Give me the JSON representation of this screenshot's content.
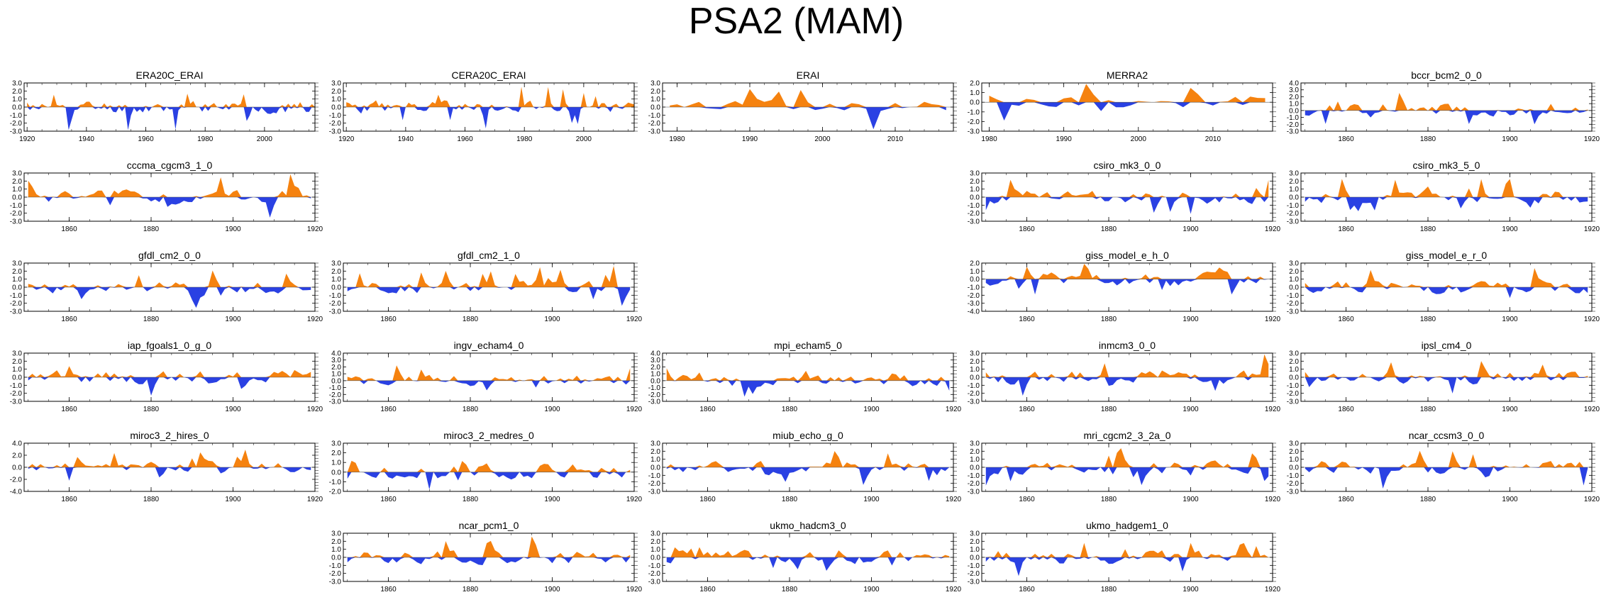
{
  "title": "PSA2 (MAM)",
  "colors": {
    "positive": "#f5820f",
    "negative": "#2a41e3",
    "axis": "#000000"
  },
  "chart_data": [
    {
      "name": "ERA20C_ERAI",
      "type": "area",
      "title": "ERA20C_ERAI",
      "x_start": 1920,
      "x_end": 2017,
      "xlim": [
        1919,
        2017
      ],
      "xticks": [
        1920,
        1940,
        1960,
        1980,
        2000
      ],
      "ylim": [
        -3.0,
        3.0
      ],
      "yticks": [
        "3.0",
        "2.0",
        "1.0",
        "0.0",
        "-1.0",
        "-2.0",
        "-3.0"
      ],
      "seed": 11
    },
    {
      "name": "CERA20C_ERAI",
      "type": "area",
      "title": "CERA20C_ERAI",
      "x_start": 1920,
      "x_end": 2017,
      "xlim": [
        1919,
        2017
      ],
      "xticks": [
        1920,
        1940,
        1960,
        1980,
        2000
      ],
      "ylim": [
        -3.0,
        3.0
      ],
      "yticks": [
        "3.0",
        "2.0",
        "1.0",
        "0.0",
        "-1.0",
        "-2.0",
        "-3.0"
      ],
      "seed": 23
    },
    {
      "name": "ERAI",
      "type": "area",
      "title": "ERAI",
      "x_start": 1979,
      "x_end": 2017,
      "xlim": [
        1978,
        2018
      ],
      "xticks": [
        1980,
        1990,
        2000,
        2010
      ],
      "ylim": [
        -3.0,
        3.0
      ],
      "yticks": [
        "3.0",
        "2.0",
        "1.0",
        "0.0",
        "-1.0",
        "-2.0",
        "-3.0"
      ],
      "seed": 37
    },
    {
      "name": "MERRA2",
      "type": "area",
      "title": "MERRA2",
      "x_start": 1980,
      "x_end": 2017,
      "xlim": [
        1979,
        2018
      ],
      "xticks": [
        1980,
        1990,
        2000,
        2010
      ],
      "ylim": [
        -3.0,
        2.0
      ],
      "yticks": [
        "2.0",
        "1.0",
        "0.0",
        "-1.0",
        "-2.0",
        "-3.0"
      ],
      "seed": 41
    },
    {
      "name": "bccr_bcm2_0_0",
      "type": "area",
      "title": "bccr_bcm2_0_0",
      "x_start": 1850,
      "x_end": 1919,
      "xlim": [
        1849,
        1920
      ],
      "xticks": [
        1860,
        1880,
        1900,
        1920
      ],
      "ylim": [
        -3.0,
        4.0
      ],
      "yticks": [
        "4.0",
        "3.0",
        "2.0",
        "1.0",
        "0.0",
        "-1.0",
        "-2.0",
        "-3.0"
      ],
      "seed": 53
    },
    {
      "name": "cccma_cgcm3_1_0",
      "type": "area",
      "title": "cccma_cgcm3_1_0",
      "x_start": 1850,
      "x_end": 1919,
      "xlim": [
        1849,
        1920
      ],
      "xticks": [
        1860,
        1880,
        1900,
        1920
      ],
      "ylim": [
        -3.0,
        3.0
      ],
      "yticks": [
        "3.0",
        "2.0",
        "1.0",
        "0.0",
        "-1.0",
        "-2.0",
        "-3.0"
      ],
      "seed": 61
    },
    {
      "name": "csiro_mk3_0_0",
      "type": "area",
      "title": "csiro_mk3_0_0",
      "x_start": 1850,
      "x_end": 1919,
      "xlim": [
        1849,
        1920
      ],
      "xticks": [
        1860,
        1880,
        1900,
        1920
      ],
      "ylim": [
        -3.0,
        3.0
      ],
      "yticks": [
        "3.0",
        "2.0",
        "1.0",
        "0.0",
        "-1.0",
        "-2.0",
        "-3.0"
      ],
      "seed": 71
    },
    {
      "name": "csiro_mk3_5_0",
      "type": "area",
      "title": "csiro_mk3_5_0",
      "x_start": 1850,
      "x_end": 1919,
      "xlim": [
        1849,
        1920
      ],
      "xticks": [
        1860,
        1880,
        1900,
        1920
      ],
      "ylim": [
        -3.0,
        3.0
      ],
      "yticks": [
        "3.0",
        "2.0",
        "1.0",
        "0.0",
        "-1.0",
        "-2.0",
        "-3.0"
      ],
      "seed": 83
    },
    {
      "name": "gfdl_cm2_0_0",
      "type": "area",
      "title": "gfdl_cm2_0_0",
      "x_start": 1850,
      "x_end": 1919,
      "xlim": [
        1849,
        1920
      ],
      "xticks": [
        1860,
        1880,
        1900,
        1920
      ],
      "ylim": [
        -3.0,
        3.0
      ],
      "yticks": [
        "3.0",
        "2.0",
        "1.0",
        "0.0",
        "-1.0",
        "-2.0",
        "-3.0"
      ],
      "seed": 97
    },
    {
      "name": "gfdl_cm2_1_0",
      "type": "area",
      "title": "gfdl_cm2_1_0",
      "x_start": 1850,
      "x_end": 1919,
      "xlim": [
        1849,
        1920
      ],
      "xticks": [
        1860,
        1880,
        1900,
        1920
      ],
      "ylim": [
        -3.0,
        3.0
      ],
      "yticks": [
        "3.0",
        "2.0",
        "1.0",
        "0.0",
        "-1.0",
        "-2.0",
        "-3.0"
      ],
      "seed": 101
    },
    {
      "name": "giss_model_e_h_0",
      "type": "area",
      "title": "giss_model_e_h_0",
      "x_start": 1850,
      "x_end": 1919,
      "xlim": [
        1849,
        1920
      ],
      "xticks": [
        1860,
        1880,
        1900,
        1920
      ],
      "ylim": [
        -4.0,
        2.0
      ],
      "yticks": [
        "2.0",
        "1.0",
        "0.0",
        "-1.0",
        "-2.0",
        "-3.0",
        "-4.0"
      ],
      "seed": 113
    },
    {
      "name": "giss_model_e_r_0",
      "type": "area",
      "title": "giss_model_e_r_0",
      "x_start": 1850,
      "x_end": 1919,
      "xlim": [
        1849,
        1920
      ],
      "xticks": [
        1860,
        1880,
        1900,
        1920
      ],
      "ylim": [
        -3.0,
        3.0
      ],
      "yticks": [
        "3.0",
        "2.0",
        "1.0",
        "0.0",
        "-1.0",
        "-2.0",
        "-3.0"
      ],
      "seed": 127
    },
    {
      "name": "iap_fgoals1_0_g_0",
      "type": "area",
      "title": "iap_fgoals1_0_g_0",
      "x_start": 1850,
      "x_end": 1919,
      "xlim": [
        1849,
        1920
      ],
      "xticks": [
        1860,
        1880,
        1900,
        1920
      ],
      "ylim": [
        -3.0,
        3.0
      ],
      "yticks": [
        "3.0",
        "2.0",
        "1.0",
        "0.0",
        "-1.0",
        "-2.0",
        "-3.0"
      ],
      "seed": 131
    },
    {
      "name": "ingv_echam4_0",
      "type": "area",
      "title": "ingv_echam4_0",
      "x_start": 1850,
      "x_end": 1919,
      "xlim": [
        1849,
        1920
      ],
      "xticks": [
        1860,
        1880,
        1900,
        1920
      ],
      "ylim": [
        -3.0,
        4.0
      ],
      "yticks": [
        "4.0",
        "3.0",
        "2.0",
        "1.0",
        "0.0",
        "-1.0",
        "-2.0",
        "-3.0"
      ],
      "seed": 139
    },
    {
      "name": "mpi_echam5_0",
      "type": "area",
      "title": "mpi_echam5_0",
      "x_start": 1850,
      "x_end": 1919,
      "xlim": [
        1849,
        1920
      ],
      "xticks": [
        1860,
        1880,
        1900,
        1920
      ],
      "ylim": [
        -3.0,
        4.0
      ],
      "yticks": [
        "4.0",
        "3.0",
        "2.0",
        "1.0",
        "0.0",
        "-1.0",
        "-2.0",
        "-3.0"
      ],
      "seed": 149
    },
    {
      "name": "inmcm3_0_0",
      "type": "area",
      "title": "inmcm3_0_0",
      "x_start": 1850,
      "x_end": 1919,
      "xlim": [
        1849,
        1920
      ],
      "xticks": [
        1860,
        1880,
        1900,
        1920
      ],
      "ylim": [
        -3.0,
        3.0
      ],
      "yticks": [
        "3.0",
        "2.0",
        "1.0",
        "0.0",
        "-1.0",
        "-2.0",
        "-3.0"
      ],
      "seed": 151
    },
    {
      "name": "ipsl_cm4_0",
      "type": "area",
      "title": "ipsl_cm4_0",
      "x_start": 1850,
      "x_end": 1919,
      "xlim": [
        1849,
        1920
      ],
      "xticks": [
        1860,
        1880,
        1900,
        1920
      ],
      "ylim": [
        -3.0,
        3.0
      ],
      "yticks": [
        "3.0",
        "2.0",
        "1.0",
        "0.0",
        "-1.0",
        "-2.0",
        "-3.0"
      ],
      "seed": 163
    },
    {
      "name": "miroc3_2_hires_0",
      "type": "area",
      "title": "miroc3_2_hires_0",
      "x_start": 1850,
      "x_end": 1919,
      "xlim": [
        1849,
        1920
      ],
      "xticks": [
        1860,
        1880,
        1900,
        1920
      ],
      "ylim": [
        -4.0,
        4.0
      ],
      "yticks": [
        "4.0",
        "2.0",
        "0.0",
        "-2.0",
        "-4.0"
      ],
      "seed": 173
    },
    {
      "name": "miroc3_2_medres_0",
      "type": "area",
      "title": "miroc3_2_medres_0",
      "x_start": 1850,
      "x_end": 1919,
      "xlim": [
        1849,
        1920
      ],
      "xticks": [
        1860,
        1880,
        1900,
        1920
      ],
      "ylim": [
        -2.0,
        3.0
      ],
      "yticks": [
        "3.0",
        "2.0",
        "1.0",
        "0.0",
        "-1.0",
        "-2.0"
      ],
      "seed": 181
    },
    {
      "name": "miub_echo_g_0",
      "type": "area",
      "title": "miub_echo_g_0",
      "x_start": 1850,
      "x_end": 1919,
      "xlim": [
        1849,
        1920
      ],
      "xticks": [
        1860,
        1880,
        1900,
        1920
      ],
      "ylim": [
        -3.0,
        3.0
      ],
      "yticks": [
        "3.0",
        "2.0",
        "1.0",
        "0.0",
        "-1.0",
        "-2.0",
        "-3.0"
      ],
      "seed": 191
    },
    {
      "name": "mri_cgcm2_3_2a_0",
      "type": "area",
      "title": "mri_cgcm2_3_2a_0",
      "x_start": 1850,
      "x_end": 1919,
      "xlim": [
        1849,
        1920
      ],
      "xticks": [
        1860,
        1880,
        1900,
        1920
      ],
      "ylim": [
        -3.0,
        3.0
      ],
      "yticks": [
        "3.0",
        "2.0",
        "1.0",
        "0.0",
        "-1.0",
        "-2.0",
        "-3.0"
      ],
      "seed": 193
    },
    {
      "name": "ncar_ccsm3_0_0",
      "type": "area",
      "title": "ncar_ccsm3_0_0",
      "x_start": 1850,
      "x_end": 1919,
      "xlim": [
        1849,
        1920
      ],
      "xticks": [
        1860,
        1880,
        1900,
        1920
      ],
      "ylim": [
        -3.0,
        3.0
      ],
      "yticks": [
        "3.0",
        "2.0",
        "1.0",
        "0.0",
        "-1.0",
        "-2.0",
        "-3.0"
      ],
      "seed": 197
    },
    {
      "name": "ncar_pcm1_0",
      "type": "area",
      "title": "ncar_pcm1_0",
      "x_start": 1850,
      "x_end": 1919,
      "xlim": [
        1849,
        1920
      ],
      "xticks": [
        1860,
        1880,
        1900,
        1920
      ],
      "ylim": [
        -3.0,
        3.0
      ],
      "yticks": [
        "3.0",
        "2.0",
        "1.0",
        "0.0",
        "-1.0",
        "-2.0",
        "-3.0"
      ],
      "seed": 199
    },
    {
      "name": "ukmo_hadcm3_0",
      "type": "area",
      "title": "ukmo_hadcm3_0",
      "x_start": 1850,
      "x_end": 1919,
      "xlim": [
        1849,
        1920
      ],
      "xticks": [
        1860,
        1880,
        1900,
        1920
      ],
      "ylim": [
        -3.0,
        3.0
      ],
      "yticks": [
        "3.0",
        "2.0",
        "1.0",
        "0.0",
        "-1.0",
        "-2.0",
        "-3.0"
      ],
      "seed": 211
    },
    {
      "name": "ukmo_hadgem1_0",
      "type": "area",
      "title": "ukmo_hadgem1_0",
      "x_start": 1850,
      "x_end": 1919,
      "xlim": [
        1849,
        1920
      ],
      "xticks": [
        1860,
        1880,
        1900,
        1920
      ],
      "ylim": [
        -3.0,
        3.0
      ],
      "yticks": [
        "3.0",
        "2.0",
        "1.0",
        "0.0",
        "-1.0",
        "-2.0",
        "-3.0"
      ],
      "seed": 223
    }
  ]
}
